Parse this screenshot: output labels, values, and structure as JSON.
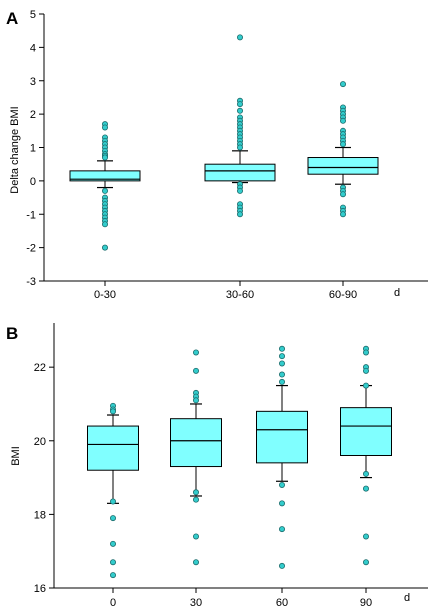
{
  "colors": {
    "box_fill": "#80FFFF",
    "outlier_fill": "#33CCCC",
    "outlier_stroke": "#1A6B6B",
    "line": "#000000"
  },
  "chart_data": [
    {
      "panel_label": "A",
      "type": "box",
      "ylabel": "Delta change BMI",
      "xlabel": "d",
      "ylim": [
        -3,
        5
      ],
      "yticks": [
        -3,
        -2,
        -1,
        0,
        1,
        2,
        3,
        4,
        5
      ],
      "categories": [
        "0-30",
        "30-60",
        "60-90"
      ],
      "boxes": [
        {
          "whisker_low": -0.2,
          "q1": 0.0,
          "median": 0.05,
          "q3": 0.3,
          "whisker_high": 0.6,
          "outliers": [
            1.7,
            1.6,
            1.3,
            1.2,
            1.1,
            1.0,
            0.9,
            0.8,
            0.75,
            0.7,
            -0.3,
            -0.5,
            -0.6,
            -0.7,
            -0.8,
            -0.9,
            -1.0,
            -1.1,
            -1.2,
            -1.3,
            -2.0
          ]
        },
        {
          "whisker_low": -0.05,
          "q1": 0.0,
          "median": 0.3,
          "q3": 0.5,
          "whisker_high": 0.9,
          "outliers": [
            4.3,
            2.4,
            2.3,
            2.1,
            1.9,
            1.8,
            1.7,
            1.6,
            1.5,
            1.4,
            1.3,
            1.2,
            1.1,
            1.0,
            -0.1,
            -0.2,
            -0.3,
            -0.7,
            -0.8,
            -0.9,
            -1.0
          ]
        },
        {
          "whisker_low": -0.1,
          "q1": 0.2,
          "median": 0.4,
          "q3": 0.7,
          "whisker_high": 1.0,
          "outliers": [
            2.9,
            2.2,
            2.1,
            2.0,
            1.9,
            1.8,
            1.5,
            1.4,
            1.3,
            1.2,
            1.1,
            -0.2,
            -0.3,
            -0.4,
            -0.8,
            -0.9,
            -1.0
          ]
        }
      ]
    },
    {
      "panel_label": "B",
      "type": "box",
      "ylabel": "BMI",
      "xlabel": "d",
      "ylim": [
        16,
        23.2
      ],
      "yticks": [
        16,
        18,
        20,
        22
      ],
      "categories": [
        "0",
        "30",
        "60",
        "90"
      ],
      "boxes": [
        {
          "whisker_low": 18.3,
          "q1": 19.2,
          "median": 19.9,
          "q3": 20.4,
          "whisker_high": 20.7,
          "outliers": [
            20.95,
            20.85,
            20.8,
            18.35,
            17.9,
            17.2,
            16.7,
            16.35
          ]
        },
        {
          "whisker_low": 18.5,
          "q1": 19.3,
          "median": 20.0,
          "q3": 20.6,
          "whisker_high": 21.0,
          "outliers": [
            22.4,
            21.9,
            21.3,
            21.2,
            21.1,
            18.6,
            18.4,
            17.4,
            16.7
          ]
        },
        {
          "whisker_low": 18.9,
          "q1": 19.4,
          "median": 20.3,
          "q3": 20.8,
          "whisker_high": 21.5,
          "outliers": [
            22.5,
            22.3,
            22.1,
            21.8,
            21.6,
            18.8,
            18.3,
            17.6,
            16.6
          ]
        },
        {
          "whisker_low": 19.0,
          "q1": 19.6,
          "median": 20.4,
          "q3": 20.9,
          "whisker_high": 21.5,
          "outliers": [
            22.5,
            22.4,
            22.0,
            21.9,
            21.5,
            19.1,
            18.7,
            17.4,
            16.7
          ]
        }
      ]
    }
  ]
}
